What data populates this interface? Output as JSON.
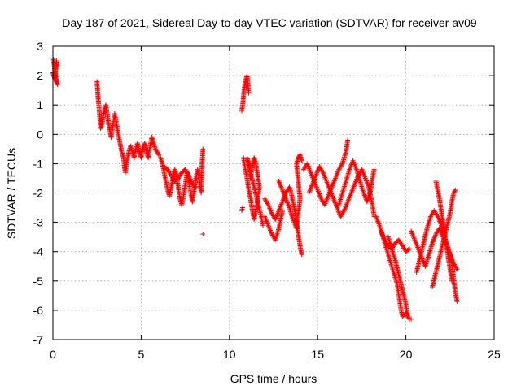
{
  "chart_data": {
    "type": "scatter",
    "title": "Day 187 of 2021, Sidereal Day-to-day VTEC variation (SDTVAR) for receiver av09",
    "xlabel": "GPS time / hours",
    "ylabel": "SDTVAR / TECUs",
    "xlim": [
      0,
      25
    ],
    "ylim": [
      -7,
      3
    ],
    "xticks": [
      0,
      5,
      10,
      15,
      20,
      25
    ],
    "yticks": [
      -7,
      -6,
      -5,
      -4,
      -3,
      -2,
      -1,
      0,
      1,
      2,
      3
    ],
    "xtick_labels": [
      "0",
      "5",
      "10",
      "15",
      "20",
      "25"
    ],
    "ytick_labels": [
      "-7",
      "-6",
      "-5",
      "-4",
      "-3",
      "-2",
      "-1",
      "0",
      "1",
      "2",
      "3"
    ],
    "grid": true,
    "marker": "+",
    "color": "#ff0000",
    "series": [
      {
        "name": "SDTVAR",
        "segments": [
          [
            [
              0.0,
              2.6
            ],
            [
              0.05,
              2.5
            ],
            [
              0.1,
              2.2
            ],
            [
              0.15,
              2.0
            ],
            [
              0.2,
              1.8
            ],
            [
              0.25,
              1.7
            ],
            [
              0.0,
              2.1
            ],
            [
              0.1,
              1.9
            ],
            [
              0.2,
              2.5
            ],
            [
              0.25,
              2.3
            ]
          ],
          [
            [
              2.5,
              1.8
            ],
            [
              2.55,
              1.3
            ],
            [
              2.6,
              1.0
            ],
            [
              2.65,
              0.6
            ],
            [
              2.7,
              0.2
            ],
            [
              2.8,
              0.4
            ],
            [
              2.9,
              0.8
            ],
            [
              3.0,
              1.0
            ],
            [
              3.1,
              0.6
            ],
            [
              3.2,
              0.2
            ],
            [
              3.3,
              -0.1
            ],
            [
              3.4,
              0.3
            ],
            [
              3.5,
              0.7
            ],
            [
              3.6,
              0.4
            ],
            [
              3.7,
              0.0
            ],
            [
              3.8,
              -0.3
            ],
            [
              3.9,
              -0.6
            ],
            [
              4.0,
              -0.8
            ],
            [
              4.05,
              -1.1
            ],
            [
              4.1,
              -1.3
            ],
            [
              4.2,
              -0.9
            ],
            [
              4.3,
              -0.6
            ],
            [
              4.4,
              -0.4
            ],
            [
              4.5,
              -0.6
            ],
            [
              4.6,
              -0.8
            ],
            [
              4.7,
              -0.5
            ],
            [
              4.8,
              -0.3
            ],
            [
              4.9,
              -0.6
            ],
            [
              5.0,
              -0.8
            ],
            [
              5.1,
              -0.5
            ],
            [
              5.2,
              -0.3
            ],
            [
              5.3,
              -0.6
            ],
            [
              5.4,
              -0.8
            ],
            [
              5.5,
              -0.4
            ],
            [
              5.6,
              -0.1
            ],
            [
              5.7,
              -0.3
            ],
            [
              5.8,
              -0.5
            ],
            [
              5.9,
              -0.6
            ],
            [
              6.0,
              -0.7
            ]
          ],
          [
            [
              6.1,
              -0.8
            ],
            [
              6.2,
              -1.0
            ],
            [
              6.3,
              -1.3
            ],
            [
              6.4,
              -1.6
            ],
            [
              6.5,
              -1.9
            ],
            [
              6.6,
              -2.1
            ],
            [
              6.7,
              -1.8
            ],
            [
              6.8,
              -1.5
            ],
            [
              6.9,
              -1.2
            ],
            [
              7.0,
              -1.4
            ],
            [
              7.1,
              -1.8
            ],
            [
              7.2,
              -2.2
            ],
            [
              7.3,
              -2.4
            ],
            [
              7.4,
              -2.1
            ],
            [
              7.5,
              -1.7
            ],
            [
              7.6,
              -1.3
            ],
            [
              7.7,
              -1.6
            ],
            [
              7.8,
              -2.0
            ],
            [
              7.9,
              -2.3
            ],
            [
              8.0,
              -1.9
            ],
            [
              8.1,
              -1.5
            ],
            [
              8.2,
              -1.2
            ],
            [
              8.3,
              -1.6
            ],
            [
              8.4,
              -2.0
            ],
            [
              8.45,
              -1.0
            ],
            [
              8.5,
              -0.5
            ]
          ],
          [
            [
              6.3,
              -1.1
            ],
            [
              6.5,
              -1.2
            ],
            [
              6.7,
              -1.4
            ],
            [
              6.9,
              -1.6
            ],
            [
              7.1,
              -1.5
            ],
            [
              7.3,
              -1.3
            ],
            [
              7.5,
              -1.2
            ],
            [
              7.7,
              -1.4
            ],
            [
              7.9,
              -1.7
            ],
            [
              8.1,
              -1.8
            ]
          ],
          [
            [
              8.5,
              -3.4
            ]
          ],
          [
            [
              10.7,
              -2.6
            ],
            [
              10.75,
              -2.5
            ]
          ],
          [
            [
              10.7,
              0.8
            ],
            [
              10.75,
              1.0
            ],
            [
              10.8,
              1.3
            ],
            [
              10.85,
              1.6
            ],
            [
              10.9,
              1.8
            ],
            [
              11.0,
              2.0
            ],
            [
              11.05,
              1.7
            ],
            [
              11.1,
              1.4
            ]
          ],
          [
            [
              10.8,
              -0.8
            ],
            [
              10.9,
              -1.2
            ],
            [
              11.0,
              -1.5
            ],
            [
              11.1,
              -1.9
            ],
            [
              11.2,
              -2.2
            ],
            [
              11.3,
              -2.6
            ],
            [
              11.4,
              -2.9
            ],
            [
              11.5,
              -2.6
            ],
            [
              11.6,
              -2.2
            ],
            [
              11.7,
              -1.8
            ],
            [
              11.6,
              -1.4
            ],
            [
              11.5,
              -1.0
            ],
            [
              11.4,
              -0.8
            ],
            [
              11.3,
              -1.1
            ],
            [
              11.2,
              -1.5
            ],
            [
              11.1,
              -1.0
            ],
            [
              11.0,
              -0.8
            ],
            [
              11.8,
              -2.8
            ],
            [
              11.9,
              -3.1
            ]
          ],
          [
            [
              12.0,
              -2.2
            ],
            [
              12.2,
              -2.4
            ],
            [
              12.4,
              -2.7
            ],
            [
              12.6,
              -2.9
            ],
            [
              12.8,
              -2.6
            ],
            [
              13.0,
              -2.3
            ],
            [
              13.2,
              -2.0
            ],
            [
              13.4,
              -1.8
            ],
            [
              13.5,
              -2.0
            ],
            [
              13.6,
              -2.3
            ],
            [
              13.7,
              -2.6
            ],
            [
              13.8,
              -3.0
            ],
            [
              13.9,
              -3.4
            ],
            [
              14.0,
              -3.8
            ],
            [
              14.1,
              -4.1
            ]
          ],
          [
            [
              12.8,
              -1.6
            ],
            [
              13.0,
              -1.9
            ],
            [
              13.2,
              -2.2
            ],
            [
              13.4,
              -2.5
            ],
            [
              13.6,
              -2.9
            ],
            [
              13.8,
              -3.2
            ],
            [
              13.9,
              -2.7
            ],
            [
              14.0,
              -2.2
            ],
            [
              13.9,
              -1.6
            ],
            [
              13.8,
              -1.0
            ],
            [
              13.9,
              -0.8
            ],
            [
              14.0,
              -0.7
            ],
            [
              14.1,
              -0.9
            ]
          ],
          [
            [
              12.0,
              -2.8
            ],
            [
              12.2,
              -3.1
            ],
            [
              12.4,
              -3.4
            ],
            [
              12.6,
              -3.6
            ],
            [
              12.8,
              -3.2
            ],
            [
              13.0,
              -2.6
            ]
          ],
          [
            [
              14.2,
              -1.2
            ],
            [
              14.4,
              -1.0
            ],
            [
              14.6,
              -1.3
            ],
            [
              14.8,
              -1.6
            ],
            [
              15.0,
              -1.9
            ],
            [
              15.2,
              -2.2
            ],
            [
              15.4,
              -2.4
            ],
            [
              15.6,
              -2.1
            ],
            [
              15.8,
              -1.8
            ],
            [
              16.0,
              -1.5
            ],
            [
              16.2,
              -1.2
            ],
            [
              16.4,
              -1.0
            ],
            [
              16.6,
              -0.6
            ],
            [
              16.7,
              -0.2
            ]
          ],
          [
            [
              14.5,
              -2.0
            ],
            [
              14.7,
              -1.7
            ],
            [
              14.9,
              -1.4
            ],
            [
              15.1,
              -1.1
            ],
            [
              15.3,
              -1.3
            ],
            [
              15.5,
              -1.6
            ],
            [
              15.7,
              -1.9
            ],
            [
              15.9,
              -2.2
            ],
            [
              16.1,
              -2.5
            ],
            [
              16.3,
              -2.8
            ],
            [
              16.5,
              -2.6
            ],
            [
              16.7,
              -2.3
            ],
            [
              16.9,
              -2.0
            ],
            [
              17.1,
              -1.7
            ],
            [
              17.3,
              -1.4
            ],
            [
              17.5,
              -1.2
            ],
            [
              17.7,
              -1.5
            ],
            [
              17.9,
              -1.8
            ],
            [
              18.0,
              -2.1
            ],
            [
              18.1,
              -2.4
            ],
            [
              18.2,
              -2.8
            ]
          ],
          [
            [
              16.2,
              -2.4
            ],
            [
              16.4,
              -2.0
            ],
            [
              16.6,
              -1.6
            ],
            [
              16.8,
              -1.2
            ],
            [
              17.0,
              -0.9
            ],
            [
              17.2,
              -1.2
            ],
            [
              17.4,
              -1.6
            ],
            [
              17.6,
              -2.0
            ],
            [
              17.8,
              -2.3
            ],
            [
              18.0,
              -1.9
            ],
            [
              18.1,
              -1.5
            ],
            [
              18.2,
              -1.2
            ]
          ],
          [
            [
              18.3,
              -2.8
            ],
            [
              18.5,
              -3.1
            ],
            [
              18.7,
              -3.5
            ],
            [
              18.9,
              -3.9
            ],
            [
              19.1,
              -4.3
            ],
            [
              19.3,
              -4.7
            ],
            [
              19.5,
              -5.1
            ],
            [
              19.6,
              -5.5
            ],
            [
              19.7,
              -5.9
            ],
            [
              19.8,
              -6.2
            ],
            [
              20.0,
              -6.1
            ],
            [
              20.2,
              -6.3
            ],
            [
              20.3,
              -6.3
            ]
          ],
          [
            [
              18.6,
              -3.3
            ],
            [
              18.8,
              -3.6
            ],
            [
              19.0,
              -3.8
            ],
            [
              19.2,
              -3.9
            ],
            [
              19.4,
              -3.7
            ],
            [
              19.6,
              -3.6
            ],
            [
              19.8,
              -3.8
            ],
            [
              20.0,
              -4.0
            ],
            [
              20.2,
              -3.9
            ]
          ],
          [
            [
              19.0,
              -3.5
            ],
            [
              19.2,
              -3.9
            ],
            [
              19.4,
              -4.3
            ],
            [
              19.6,
              -4.8
            ],
            [
              19.8,
              -5.3
            ],
            [
              20.0,
              -5.8
            ],
            [
              20.1,
              -6.2
            ]
          ],
          [
            [
              20.3,
              -3.3
            ],
            [
              20.5,
              -3.6
            ],
            [
              20.7,
              -3.9
            ],
            [
              20.9,
              -4.2
            ],
            [
              21.1,
              -4.5
            ],
            [
              21.3,
              -4.1
            ],
            [
              21.5,
              -3.7
            ],
            [
              21.7,
              -3.4
            ],
            [
              21.9,
              -3.2
            ],
            [
              22.1,
              -3.5
            ],
            [
              22.3,
              -3.8
            ],
            [
              22.5,
              -4.1
            ],
            [
              22.7,
              -4.4
            ],
            [
              22.9,
              -4.6
            ]
          ],
          [
            [
              20.6,
              -4.7
            ],
            [
              20.8,
              -4.2
            ],
            [
              21.0,
              -3.7
            ],
            [
              21.2,
              -3.2
            ],
            [
              21.4,
              -2.8
            ],
            [
              21.6,
              -2.6
            ],
            [
              21.8,
              -2.8
            ],
            [
              22.0,
              -3.1
            ],
            [
              22.2,
              -3.5
            ],
            [
              22.4,
              -3.9
            ],
            [
              22.6,
              -4.3
            ],
            [
              22.7,
              -4.9
            ],
            [
              22.8,
              -5.4
            ],
            [
              22.9,
              -5.7
            ]
          ],
          [
            [
              21.5,
              -5.2
            ],
            [
              21.7,
              -4.7
            ],
            [
              21.9,
              -4.2
            ],
            [
              22.1,
              -3.7
            ],
            [
              22.3,
              -3.2
            ],
            [
              22.5,
              -2.7
            ],
            [
              22.6,
              -2.3
            ],
            [
              22.7,
              -2.0
            ],
            [
              22.8,
              -1.9
            ]
          ],
          [
            [
              21.7,
              -1.6
            ],
            [
              21.8,
              -1.9
            ],
            [
              21.9,
              -2.2
            ],
            [
              22.0,
              -2.6
            ],
            [
              22.1,
              -3.0
            ],
            [
              22.2,
              -3.4
            ],
            [
              22.3,
              -3.8
            ],
            [
              22.4,
              -4.2
            ],
            [
              22.5,
              -4.6
            ],
            [
              22.6,
              -5.0
            ]
          ]
        ]
      }
    ]
  }
}
